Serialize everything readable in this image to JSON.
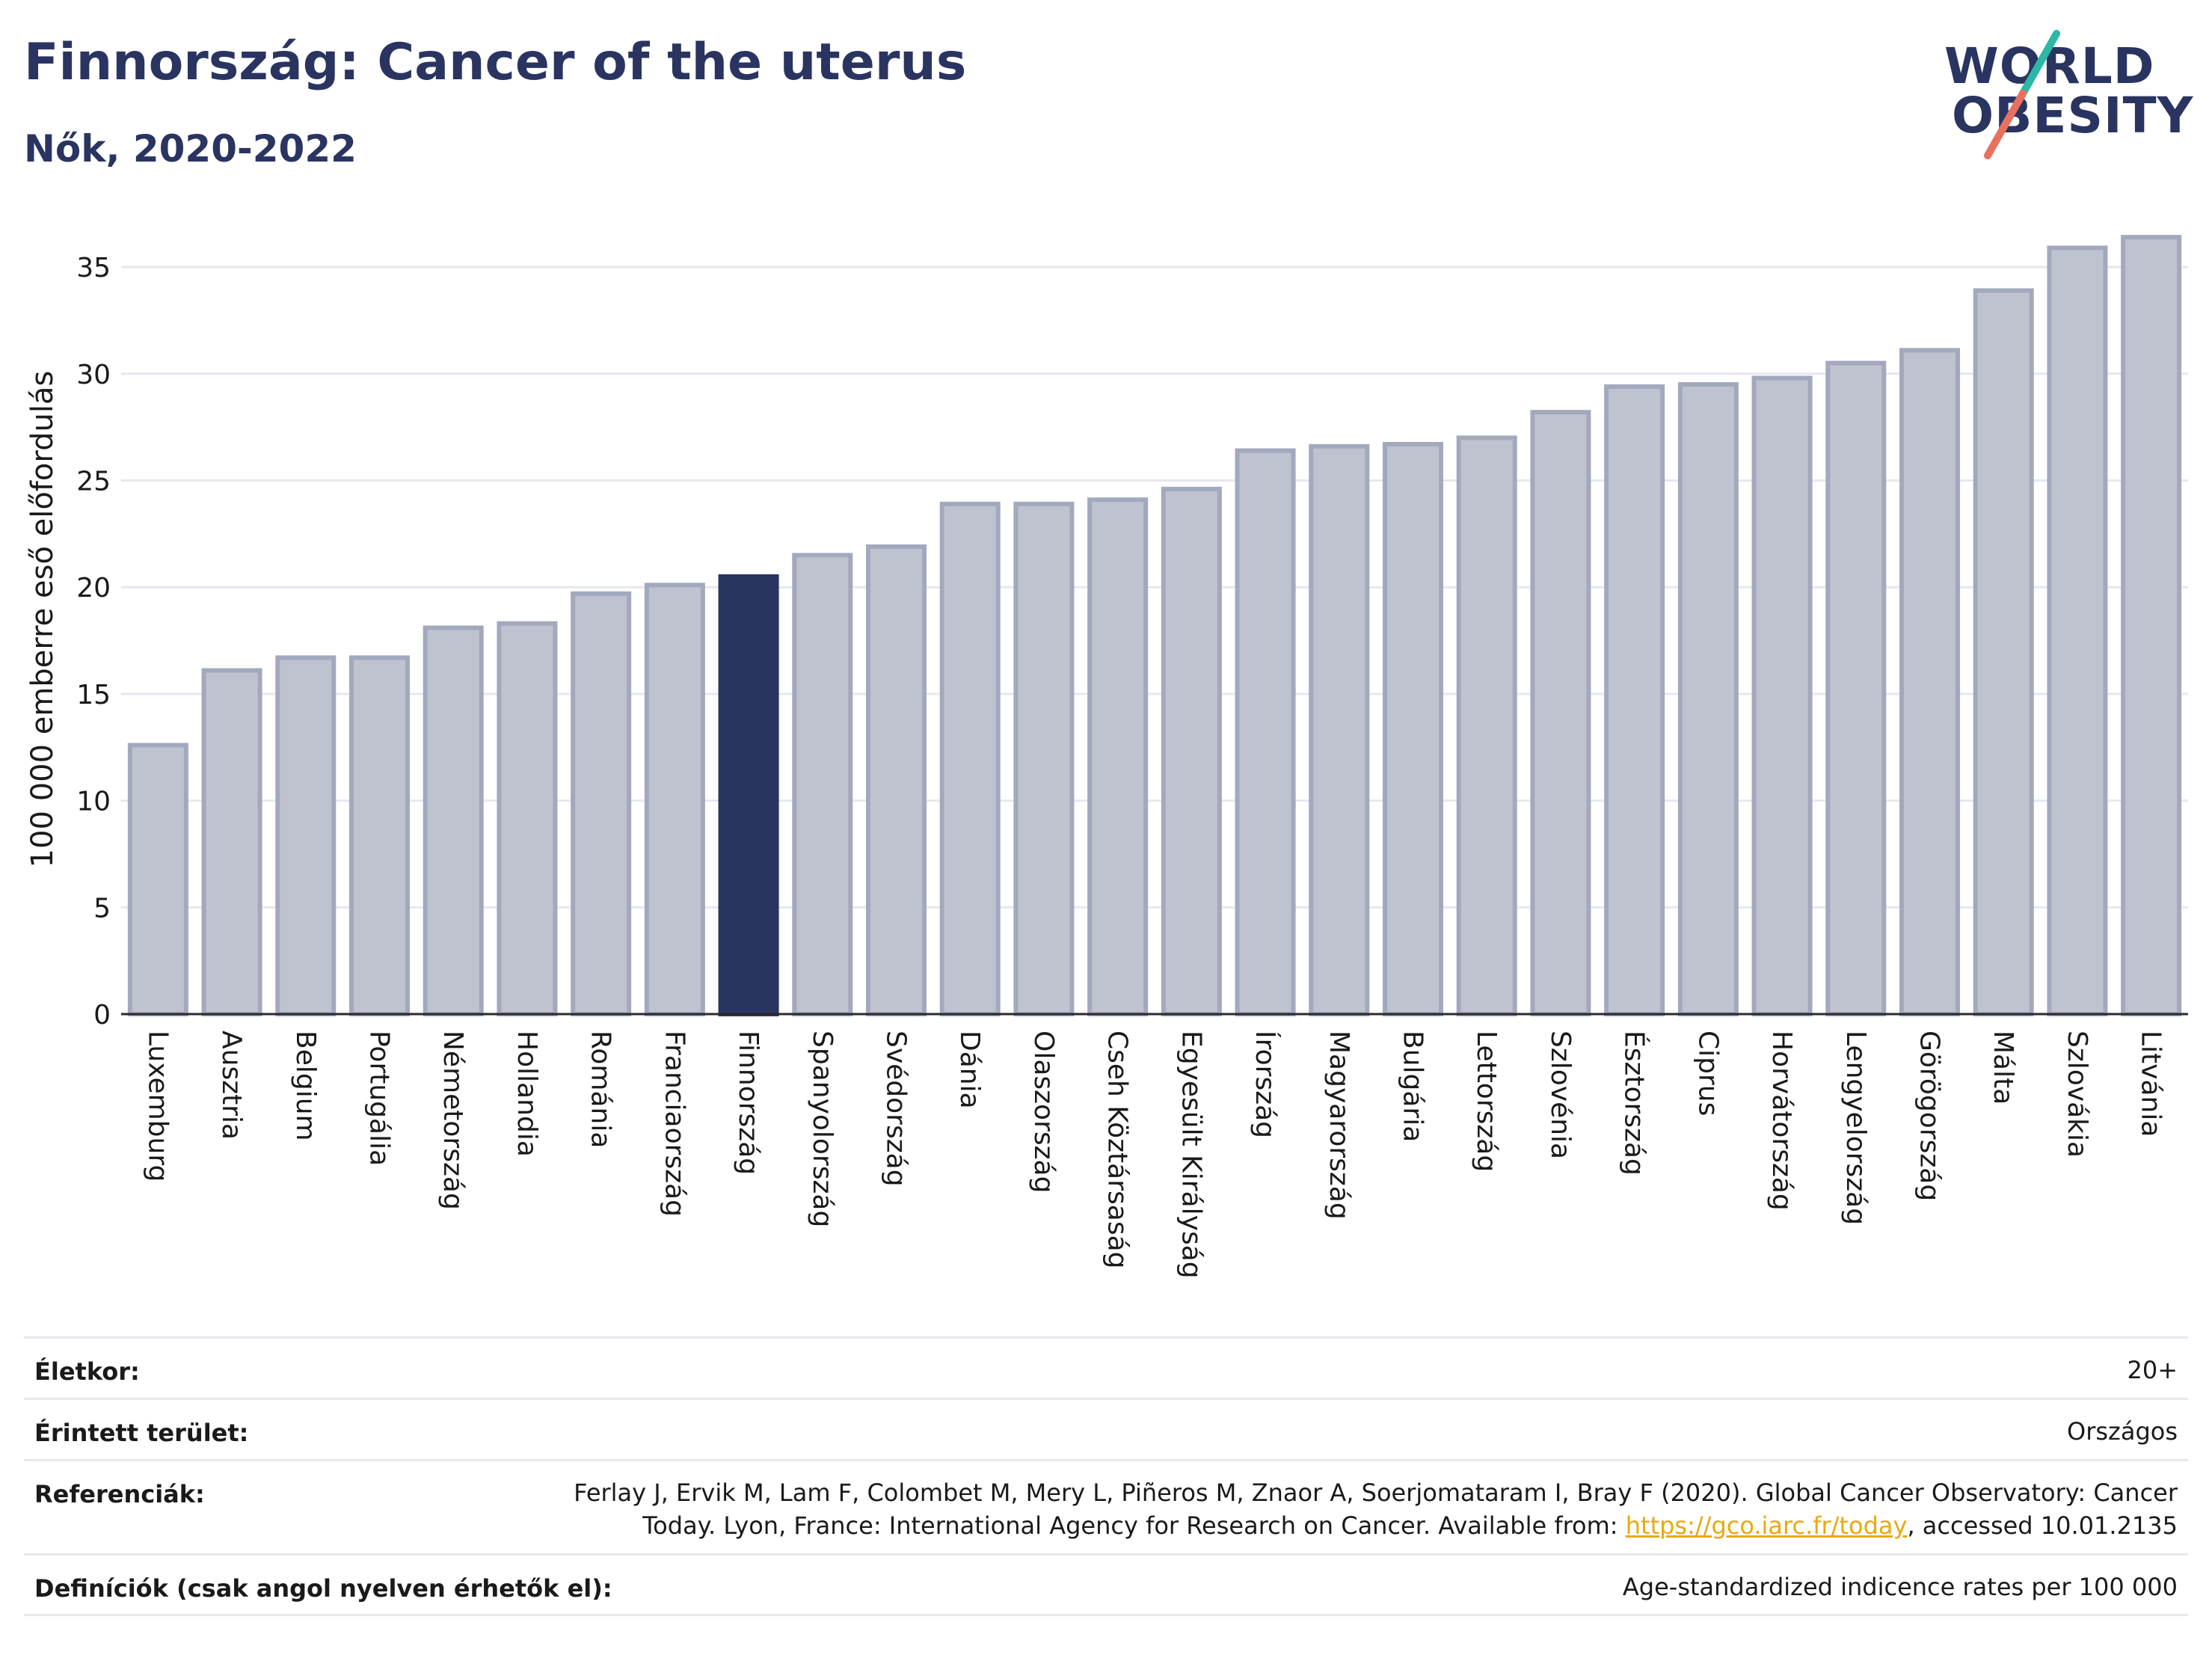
{
  "header": {
    "title": "Finnország: Cancer of the uterus",
    "subtitle": "Nők, 2020-2022"
  },
  "logo": {
    "line1": "WORLD",
    "line2": "OBESITY",
    "colors": {
      "text": "#2a3461",
      "slash_top": "#2bb8a6",
      "slash_bottom": "#e8705f"
    }
  },
  "chart_data": {
    "type": "bar",
    "ylabel": "100 000 emberre eső előfordulás",
    "ylim": [
      0,
      37
    ],
    "yticks": [
      0,
      5,
      10,
      15,
      20,
      25,
      30,
      35
    ],
    "grid": true,
    "highlight": "Finnország",
    "colors": {
      "bar": "#bfc3d0",
      "bar_edge": "#a3a9bd",
      "highlight": "#2a3461"
    },
    "categories": [
      "Luxemburg",
      "Ausztria",
      "Belgium",
      "Portugália",
      "Németország",
      "Hollandia",
      "Románia",
      "Franciaország",
      "Finnország",
      "Spanyolország",
      "Svédország",
      "Dánia",
      "Olaszország",
      "Cseh Köztársaság",
      "Egyesült Királyság",
      "Írország",
      "Magyarország",
      "Bulgária",
      "Lettország",
      "Szlovénia",
      "Észtország",
      "Ciprus",
      "Horvátország",
      "Lengyelország",
      "Görögország",
      "Málta",
      "Szlovákia",
      "Litvánia"
    ],
    "values": [
      12.6,
      16.1,
      16.7,
      16.7,
      18.1,
      18.3,
      19.7,
      20.1,
      20.5,
      21.5,
      21.9,
      23.9,
      23.9,
      24.1,
      24.6,
      26.4,
      26.6,
      26.7,
      27.0,
      28.2,
      29.4,
      29.5,
      29.8,
      30.5,
      31.1,
      33.9,
      35.9,
      36.4
    ]
  },
  "meta": {
    "age_label": "Életkor:",
    "age_value": "20+",
    "area_label": "Érintett terület:",
    "area_value": "Országos",
    "ref_label": "Referenciák:",
    "ref_line1": "Ferlay J, Ervik M, Lam F, Colombet M, Mery L, Piñeros M, Znaor A, Soerjomataram I, Bray F (2020). Global Cancer Observatory: Cancer",
    "ref_line2_pre": "Today. Lyon, France: International Agency for Research on Cancer. Available from: ",
    "ref_link": "https://gco.iarc.fr/today",
    "ref_line2_post": ", accessed 10.01.2135",
    "def_label": "Definíciók (csak angol nyelven érhetők el):",
    "def_value": "Age-standardized indicence rates per 100 000"
  }
}
